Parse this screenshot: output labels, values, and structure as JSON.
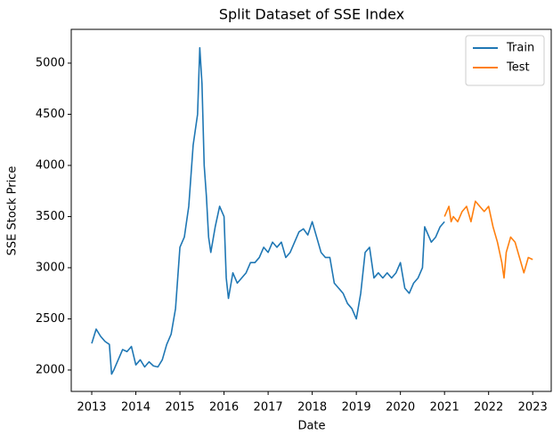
{
  "chart_data": {
    "type": "line",
    "title": "Split Dataset of SSE Index",
    "xlabel": "Date",
    "ylabel": "SSE Stock Price",
    "xlim": [
      2012.535,
      2023.44
    ],
    "xticks": [
      2013,
      2014,
      2015,
      2016,
      2017,
      2018,
      2019,
      2020,
      2021,
      2022,
      2023
    ],
    "ylim": [
      1791,
      5330
    ],
    "yticks": [
      2000,
      2500,
      3000,
      3500,
      4000,
      4500,
      5000
    ],
    "legend": "upper right",
    "grid": false,
    "series": [
      {
        "name": "Train",
        "color": "#1f77b4",
        "x": [
          2013.0,
          2013.1,
          2013.2,
          2013.3,
          2013.4,
          2013.45,
          2013.5,
          2013.6,
          2013.7,
          2013.8,
          2013.9,
          2014.0,
          2014.1,
          2014.2,
          2014.3,
          2014.4,
          2014.5,
          2014.6,
          2014.7,
          2014.8,
          2014.9,
          2015.0,
          2015.1,
          2015.2,
          2015.3,
          2015.4,
          2015.45,
          2015.5,
          2015.55,
          2015.6,
          2015.65,
          2015.7,
          2015.8,
          2015.9,
          2016.0,
          2016.05,
          2016.1,
          2016.2,
          2016.3,
          2016.4,
          2016.5,
          2016.6,
          2016.7,
          2016.8,
          2016.9,
          2017.0,
          2017.1,
          2017.2,
          2017.3,
          2017.4,
          2017.5,
          2017.6,
          2017.7,
          2017.8,
          2017.9,
          2018.0,
          2018.1,
          2018.2,
          2018.3,
          2018.4,
          2018.5,
          2018.6,
          2018.7,
          2018.8,
          2018.9,
          2019.0,
          2019.1,
          2019.2,
          2019.3,
          2019.4,
          2019.5,
          2019.6,
          2019.7,
          2019.8,
          2019.9,
          2020.0,
          2020.1,
          2020.2,
          2020.3,
          2020.4,
          2020.5,
          2020.55,
          2020.6,
          2020.7,
          2020.8,
          2020.9,
          2021.0
        ],
        "values": [
          2260,
          2400,
          2330,
          2280,
          2250,
          1960,
          2000,
          2100,
          2200,
          2180,
          2230,
          2050,
          2100,
          2030,
          2080,
          2040,
          2030,
          2100,
          2250,
          2350,
          2600,
          3200,
          3300,
          3600,
          4200,
          4500,
          5150,
          4800,
          4000,
          3700,
          3300,
          3150,
          3400,
          3600,
          3500,
          2900,
          2700,
          2950,
          2850,
          2900,
          2950,
          3050,
          3050,
          3100,
          3200,
          3150,
          3250,
          3200,
          3250,
          3100,
          3150,
          3250,
          3350,
          3380,
          3320,
          3450,
          3300,
          3150,
          3100,
          3100,
          2850,
          2800,
          2750,
          2650,
          2600,
          2500,
          2750,
          3150,
          3200,
          2900,
          2950,
          2900,
          2950,
          2900,
          2950,
          3050,
          2800,
          2750,
          2850,
          2900,
          3000,
          3400,
          3350,
          3250,
          3300,
          3400,
          3450
        ]
      },
      {
        "name": "Test",
        "color": "#ff7f0e",
        "x": [
          2021.0,
          2021.1,
          2021.15,
          2021.2,
          2021.3,
          2021.4,
          2021.5,
          2021.6,
          2021.7,
          2021.8,
          2021.9,
          2022.0,
          2022.1,
          2022.2,
          2022.3,
          2022.35,
          2022.4,
          2022.5,
          2022.6,
          2022.7,
          2022.8,
          2022.9,
          2023.0
        ],
        "values": [
          3500,
          3600,
          3450,
          3500,
          3450,
          3550,
          3600,
          3450,
          3650,
          3600,
          3550,
          3600,
          3400,
          3250,
          3050,
          2900,
          3150,
          3300,
          3250,
          3100,
          2950,
          3100,
          3080
        ]
      }
    ]
  }
}
